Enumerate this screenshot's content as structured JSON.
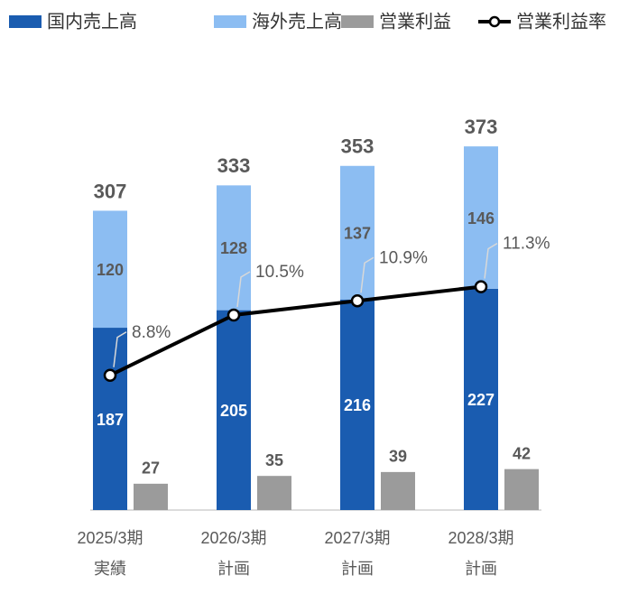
{
  "chart_data": {
    "type": "bar",
    "categories": [
      [
        "2025/3期",
        "実績"
      ],
      [
        "2026/3期",
        "計画"
      ],
      [
        "2027/3期",
        "計画"
      ],
      [
        "2028/3期",
        "計画"
      ]
    ],
    "series": [
      {
        "name": "国内売上高",
        "color": "#1a5cb0",
        "stack": true,
        "values": [
          187,
          205,
          216,
          227
        ]
      },
      {
        "name": "海外売上高",
        "color": "#8cbdf2",
        "stack": true,
        "values": [
          120,
          128,
          137,
          146
        ]
      },
      {
        "name": "営業利益",
        "color": "#9b9b9b",
        "values": [
          27,
          35,
          39,
          42
        ]
      },
      {
        "name": "営業利益率",
        "color": "#000000",
        "type": "line",
        "axis": "y2",
        "values": [
          8.8,
          10.5,
          10.9,
          11.3
        ],
        "value_labels": [
          "8.8%",
          "10.5%",
          "10.9%",
          "11.3%"
        ]
      }
    ],
    "totals": [
      307,
      333,
      353,
      373
    ],
    "ylim": [
      0,
      400
    ],
    "y2lim": [
      5,
      16
    ]
  }
}
